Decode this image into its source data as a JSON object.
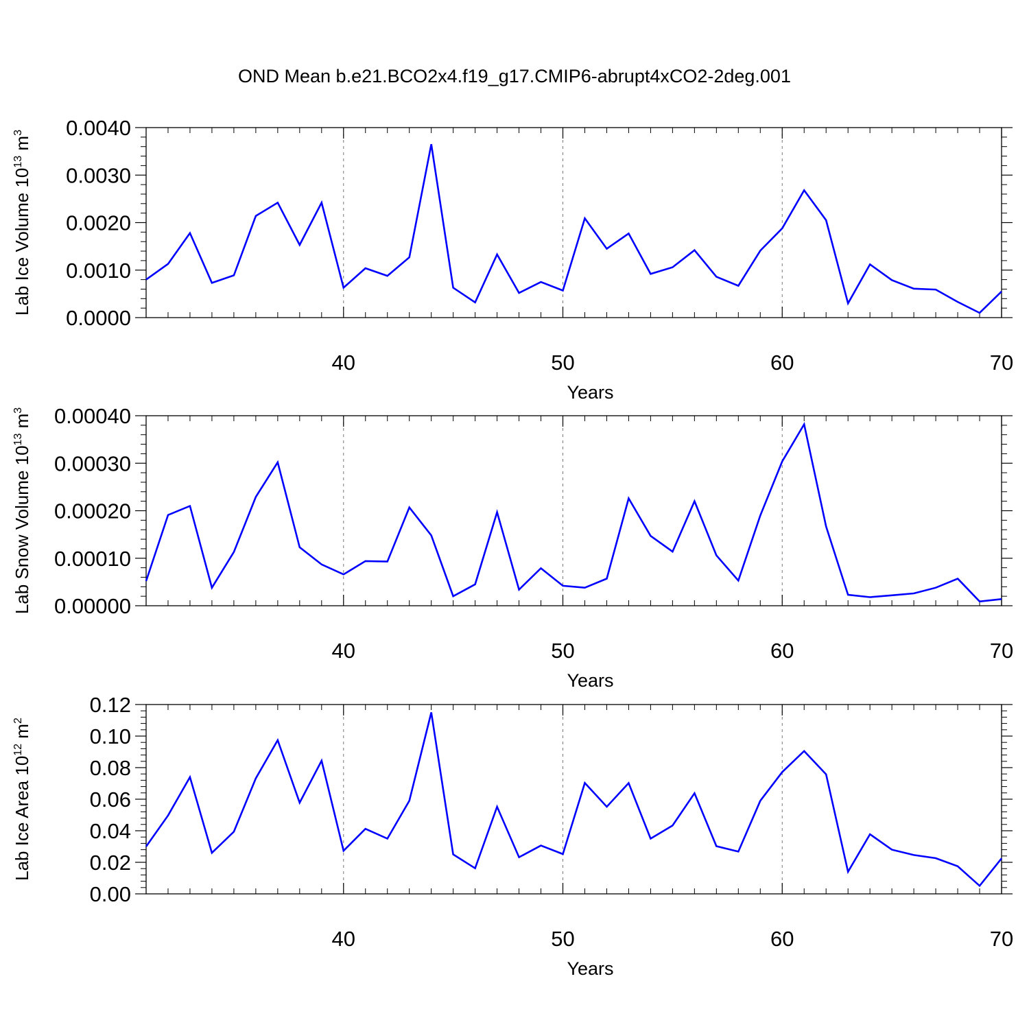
{
  "title": "OND Mean b.e21.BCO2x4.f19_g17.CMIP6-abrupt4xCO2-2deg.001",
  "colors": {
    "line": "#0000ff",
    "axis": "#000000",
    "grid": "#777777"
  },
  "chart_data": [
    {
      "type": "line",
      "ylabel_base": "Lab Ice Volume 10",
      "ylabel_exp": "13",
      "ylabel_unit": "m",
      "ylabel_unit_exp": "3",
      "xlabel": "Years",
      "xlim": [
        31,
        70
      ],
      "ylim": [
        0,
        0.004
      ],
      "yticks": [
        0,
        0.001,
        0.002,
        0.003,
        0.004
      ],
      "ytick_labels": [
        "0.0000",
        "0.0010",
        "0.0020",
        "0.0030",
        "0.0040"
      ],
      "xticks": [
        40,
        50,
        60,
        70
      ],
      "xtick_labels": [
        "40",
        "50",
        "60",
        "70"
      ],
      "grid_x": [
        40,
        50,
        60
      ],
      "x": [
        31,
        32,
        33,
        34,
        35,
        36,
        37,
        38,
        39,
        40,
        41,
        42,
        43,
        44,
        45,
        46,
        47,
        48,
        49,
        50,
        51,
        52,
        53,
        54,
        55,
        56,
        57,
        58,
        59,
        60,
        61,
        62,
        63,
        64,
        65,
        66,
        67,
        68,
        69,
        70
      ],
      "values": [
        0.0008,
        0.00113,
        0.00178,
        0.00073,
        0.00089,
        0.00214,
        0.00242,
        0.00153,
        0.00242,
        0.00063,
        0.00104,
        0.00088,
        0.00127,
        0.00365,
        0.00063,
        0.00032,
        0.00133,
        0.00052,
        0.00075,
        0.00057,
        0.00209,
        0.00145,
        0.00177,
        0.00092,
        0.00106,
        0.00142,
        0.00086,
        0.00067,
        0.00141,
        0.00188,
        0.00268,
        0.00205,
        0.0003,
        0.00112,
        0.00079,
        0.00061,
        0.00059,
        0.00033,
        0.0001,
        0.00055
      ]
    },
    {
      "type": "line",
      "ylabel_base": "Lab Snow Volume 10",
      "ylabel_exp": "13",
      "ylabel_unit": "m",
      "ylabel_unit_exp": "3",
      "xlabel": "Years",
      "xlim": [
        31,
        70
      ],
      "ylim": [
        0,
        0.0004
      ],
      "yticks": [
        0,
        0.0001,
        0.0002,
        0.0003,
        0.0004
      ],
      "ytick_labels": [
        "0.00000",
        "0.00010",
        "0.00020",
        "0.00030",
        "0.00040"
      ],
      "xticks": [
        40,
        50,
        60,
        70
      ],
      "xtick_labels": [
        "40",
        "50",
        "60",
        "70"
      ],
      "grid_x": [
        40,
        50,
        60
      ],
      "x": [
        31,
        32,
        33,
        34,
        35,
        36,
        37,
        38,
        39,
        40,
        41,
        42,
        43,
        44,
        45,
        46,
        47,
        48,
        49,
        50,
        51,
        52,
        53,
        54,
        55,
        56,
        57,
        58,
        59,
        60,
        61,
        62,
        63,
        64,
        65,
        66,
        67,
        68,
        69,
        70
      ],
      "values": [
        5.2e-05,
        0.000191,
        0.00021,
        3.8e-05,
        0.000113,
        0.000229,
        0.000302,
        0.000123,
        8.7e-05,
        6.6e-05,
        9.4e-05,
        9.3e-05,
        0.000207,
        0.000148,
        2e-05,
        4.5e-05,
        0.000197,
        3.4e-05,
        7.9e-05,
        4.2e-05,
        3.8e-05,
        5.7e-05,
        0.000226,
        0.000147,
        0.000114,
        0.00022,
        0.000106,
        5.3e-05,
        0.00019,
        0.000304,
        0.000382,
        0.000167,
        2.3e-05,
        1.8e-05,
        2.2e-05,
        2.6e-05,
        3.8e-05,
        5.7e-05,
        9e-06,
        1.4e-05
      ]
    },
    {
      "type": "line",
      "ylabel_base": "Lab Ice Area 10",
      "ylabel_exp": "12",
      "ylabel_unit": "m",
      "ylabel_unit_exp": "2",
      "xlabel": "Years",
      "xlim": [
        31,
        70
      ],
      "ylim": [
        0,
        0.12
      ],
      "yticks": [
        0,
        0.02,
        0.04,
        0.06,
        0.08,
        0.1,
        0.12
      ],
      "ytick_labels": [
        "0.00",
        "0.02",
        "0.04",
        "0.06",
        "0.08",
        "0.10",
        "0.12"
      ],
      "xticks": [
        40,
        50,
        60,
        70
      ],
      "xtick_labels": [
        "40",
        "50",
        "60",
        "70"
      ],
      "grid_x": [
        40,
        50,
        60
      ],
      "x": [
        31,
        32,
        33,
        34,
        35,
        36,
        37,
        38,
        39,
        40,
        41,
        42,
        43,
        44,
        45,
        46,
        47,
        48,
        49,
        50,
        51,
        52,
        53,
        54,
        55,
        56,
        57,
        58,
        59,
        60,
        61,
        62,
        63,
        64,
        65,
        66,
        67,
        68,
        69,
        70
      ],
      "values": [
        0.03,
        0.0497,
        0.074,
        0.026,
        0.0394,
        0.0732,
        0.0974,
        0.0578,
        0.0844,
        0.0273,
        0.0412,
        0.035,
        0.059,
        0.115,
        0.025,
        0.0162,
        0.0552,
        0.0232,
        0.0306,
        0.0252,
        0.0703,
        0.0552,
        0.0702,
        0.035,
        0.0433,
        0.0638,
        0.0302,
        0.0268,
        0.059,
        0.0772,
        0.0905,
        0.0758,
        0.014,
        0.0378,
        0.028,
        0.0246,
        0.0226,
        0.0175,
        0.0051,
        0.0225
      ]
    }
  ]
}
